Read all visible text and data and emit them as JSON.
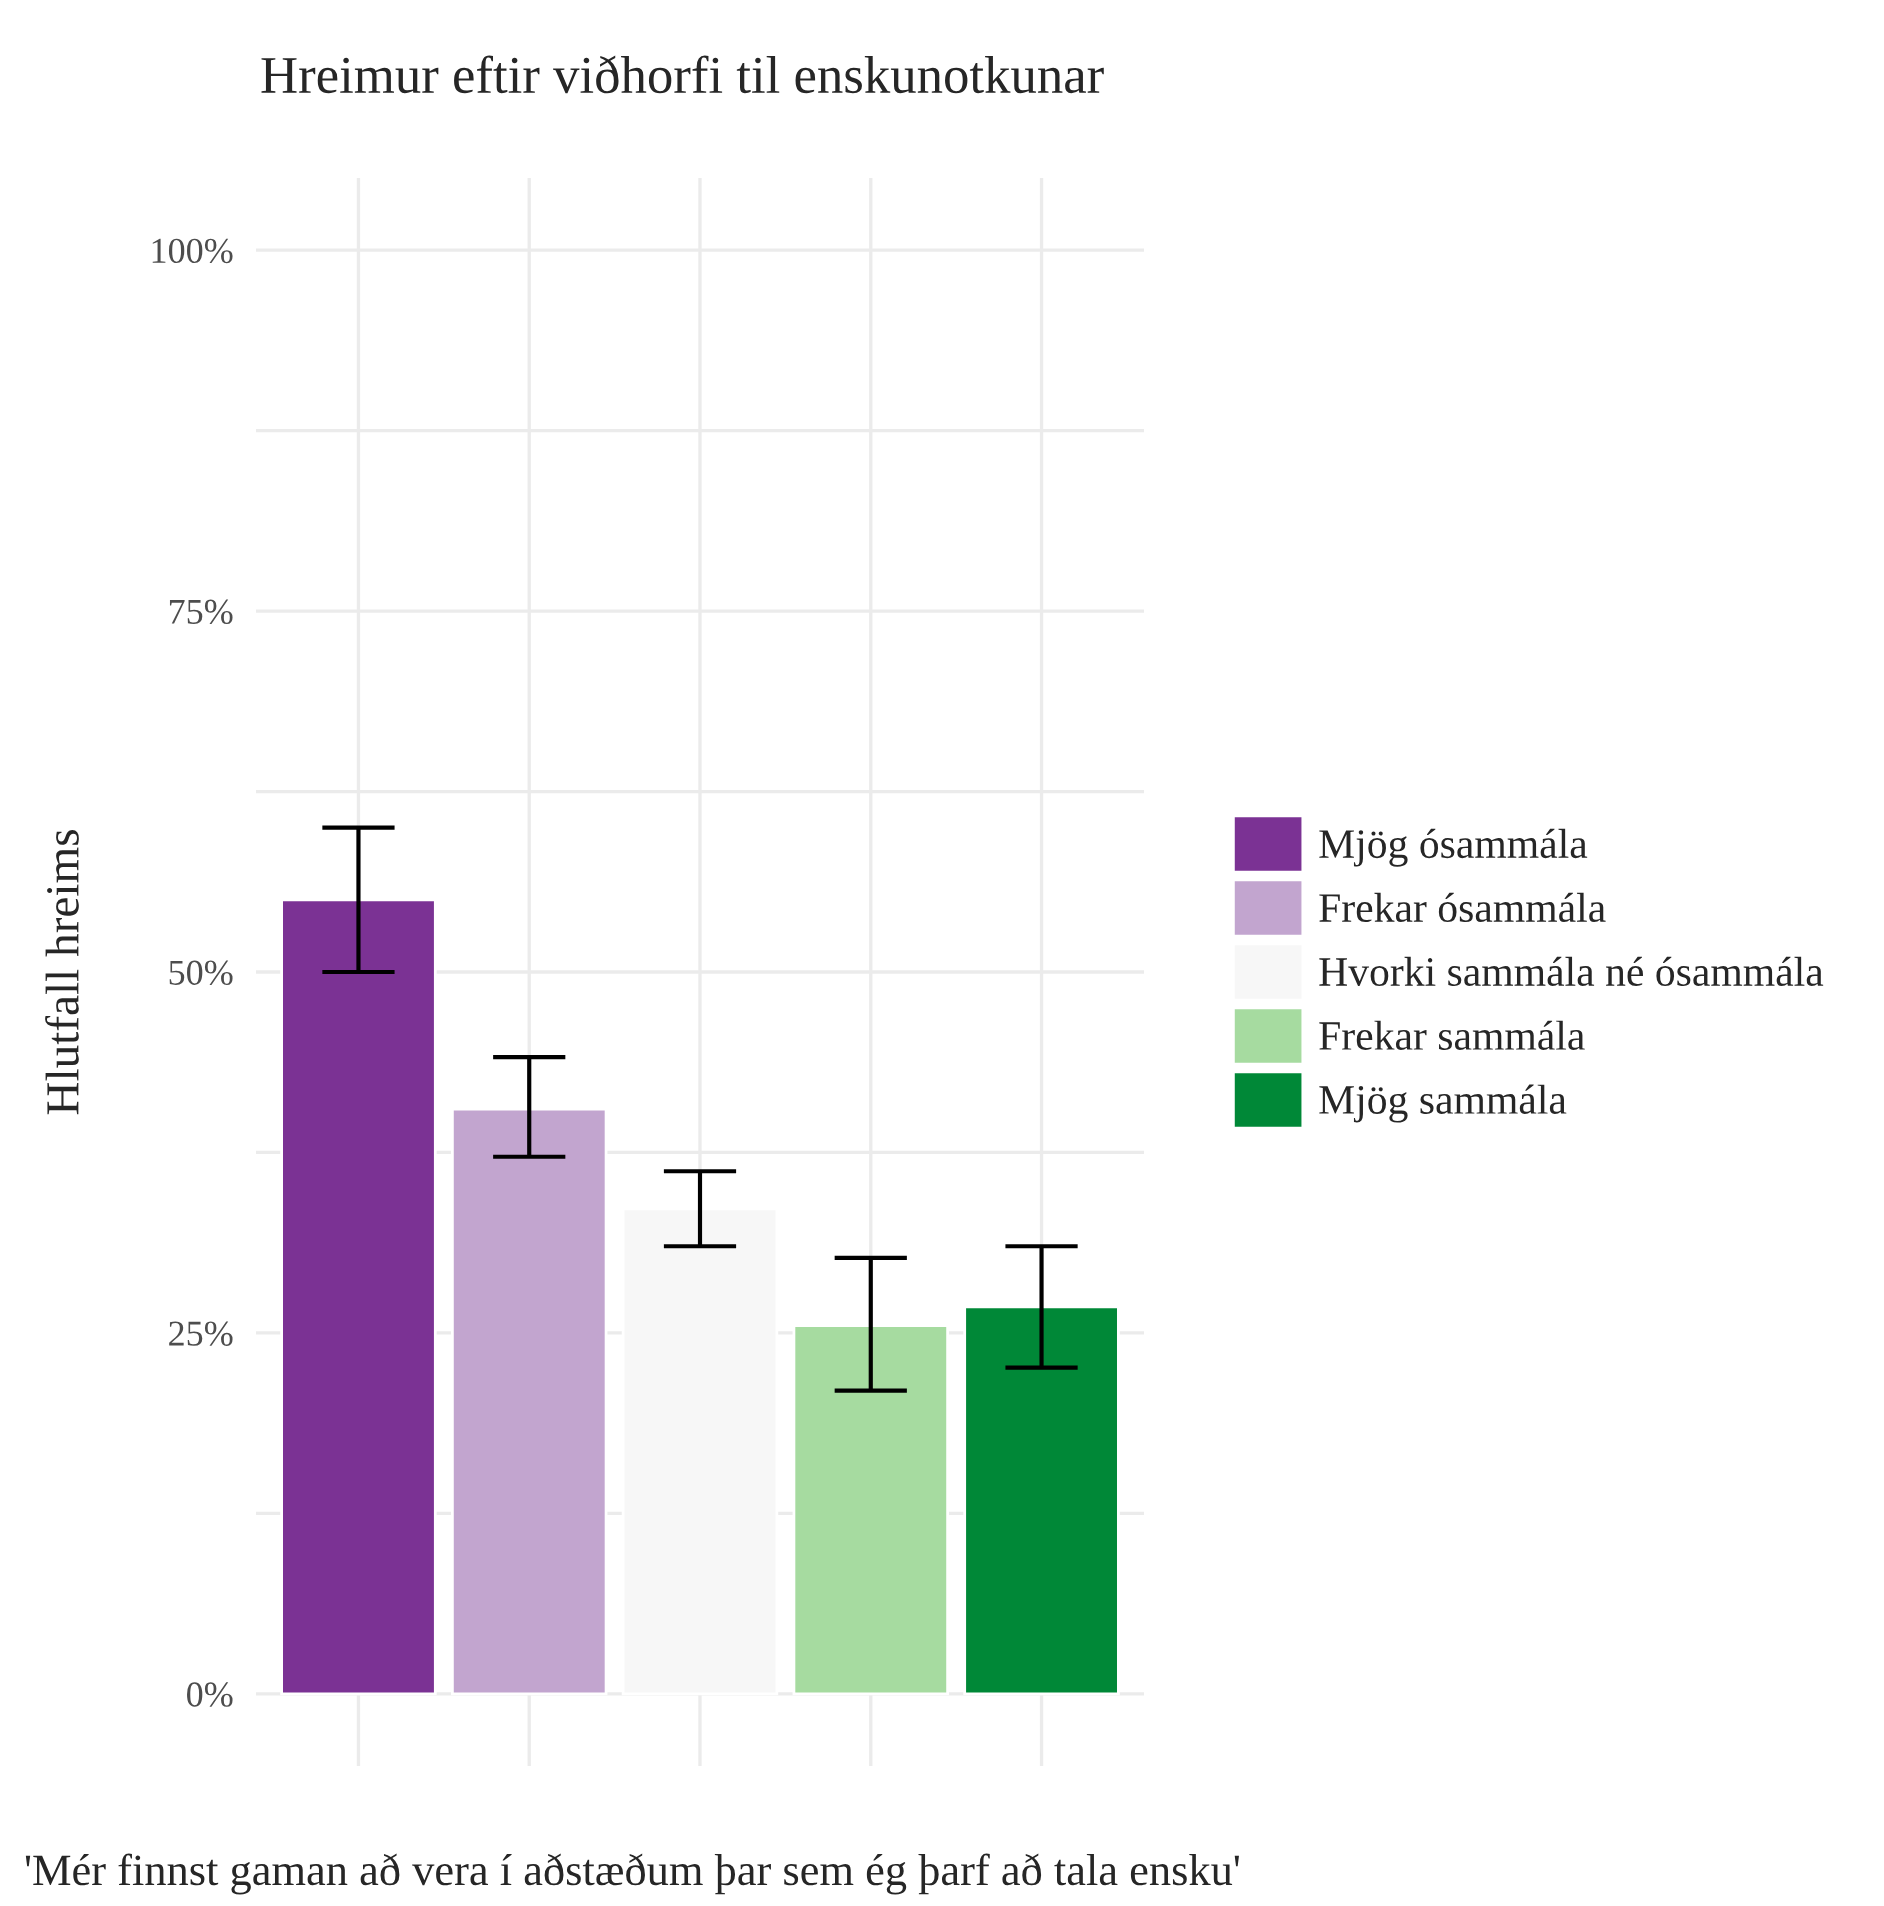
{
  "chart_data": {
    "type": "bar",
    "title": "Hreimur eftir viðhorfi til enskunotkunar",
    "ylabel": "Hlutfall hreims",
    "annotations": [
      "'Mér finnst gaman að vera í aðstæðum þar sem ég þarf að tala ensku'"
    ],
    "categories": [
      null,
      null,
      null,
      null,
      null
    ],
    "series": [
      {
        "name": "Mjög ósammála",
        "color": "#7b3294",
        "values": [
          55,
          null,
          null,
          null,
          null
        ],
        "errors": [
          [
            50,
            60
          ],
          null,
          null,
          null,
          null
        ]
      },
      {
        "name": "Frekar ósammála",
        "color": "#c2a5cf",
        "values": [
          null,
          40.5,
          null,
          null,
          null
        ],
        "errors": [
          null,
          [
            37.2,
            44.1
          ],
          null,
          null,
          null
        ]
      },
      {
        "name": "Hvorki sammála né ósammála",
        "color": "#f7f7f7",
        "values": [
          null,
          null,
          33.6,
          null,
          null
        ],
        "errors": [
          null,
          null,
          [
            31.0,
            36.2
          ],
          null,
          null
        ]
      },
      {
        "name": "Frekar sammála",
        "color": "#a6dba0",
        "values": [
          null,
          null,
          null,
          25.5,
          null
        ],
        "errors": [
          null,
          null,
          null,
          [
            21.0,
            30.2
          ],
          null
        ]
      },
      {
        "name": "Mjög sammála",
        "color": "#008837",
        "values": [
          null,
          null,
          null,
          null,
          26.8
        ],
        "errors": [
          null,
          null,
          null,
          null,
          [
            22.6,
            31.0
          ]
        ]
      }
    ],
    "ylim": [
      -5,
      105
    ],
    "yticks": [
      {
        "value": 0,
        "label": "0%"
      },
      {
        "value": 12.5,
        "label": null
      },
      {
        "value": 25,
        "label": "25%"
      },
      {
        "value": 37.5,
        "label": null
      },
      {
        "value": 50,
        "label": "50%"
      },
      {
        "value": 62.5,
        "label": null
      },
      {
        "value": 75,
        "label": "75%"
      },
      {
        "value": 87.5,
        "label": null
      },
      {
        "value": 100,
        "label": "100%"
      }
    ],
    "grid": true,
    "legend": "right",
    "tick_labels": "y"
  }
}
